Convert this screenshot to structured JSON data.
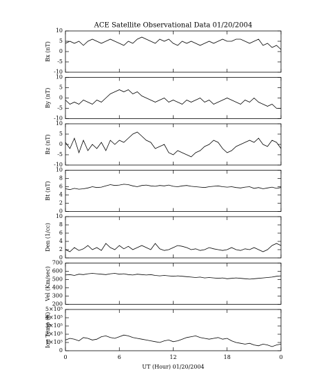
{
  "chart_data": [
    {
      "type": "line",
      "title": "ACE Satellite Observational Data   01/20/2004",
      "ylabel": "Bx (nT)",
      "x": [
        0,
        0.5,
        1,
        1.5,
        2,
        2.5,
        3,
        3.5,
        4,
        4.5,
        5,
        5.5,
        6,
        6.5,
        7,
        7.5,
        8,
        8.5,
        9,
        9.5,
        10,
        10.5,
        11,
        11.5,
        12,
        12.5,
        13,
        13.5,
        14,
        14.5,
        15,
        15.5,
        16,
        16.5,
        17,
        17.5,
        18,
        18.5,
        19,
        19.5,
        20,
        20.5,
        21,
        21.5,
        22,
        22.5,
        23,
        23.5,
        24
      ],
      "series": [
        {
          "name": "Bx",
          "color": "#000000",
          "values": [
            4,
            5,
            4,
            5,
            3,
            5,
            6,
            5,
            4,
            5,
            6,
            5,
            4,
            3,
            5,
            4,
            6,
            7,
            6,
            5,
            4,
            6,
            5,
            6,
            4,
            3,
            5,
            4,
            5,
            4,
            3,
            4,
            5,
            4,
            5,
            6,
            5,
            5,
            6,
            6,
            5,
            4,
            5,
            6,
            3,
            4,
            2,
            3,
            1
          ]
        }
      ],
      "xlim": [
        0,
        24
      ],
      "ylim": [
        -10,
        10
      ],
      "yticks": [
        10,
        5,
        0,
        -5,
        -10
      ]
    },
    {
      "type": "line",
      "ylabel": "By (nT)",
      "x": [
        0,
        0.5,
        1,
        1.5,
        2,
        2.5,
        3,
        3.5,
        4,
        4.5,
        5,
        5.5,
        6,
        6.5,
        7,
        7.5,
        8,
        8.5,
        9,
        9.5,
        10,
        10.5,
        11,
        11.5,
        12,
        12.5,
        13,
        13.5,
        14,
        14.5,
        15,
        15.5,
        16,
        16.5,
        17,
        17.5,
        18,
        18.5,
        19,
        19.5,
        20,
        20.5,
        21,
        21.5,
        22,
        22.5,
        23,
        23.5,
        24
      ],
      "series": [
        {
          "name": "By",
          "color": "#000000",
          "values": [
            -1,
            -3,
            -2,
            -3,
            -1,
            -2,
            -3,
            -1,
            -2,
            0,
            2,
            3,
            4,
            3,
            4,
            2,
            3,
            1,
            0,
            -1,
            -2,
            -1,
            0,
            -2,
            -1,
            -2,
            -3,
            -1,
            -2,
            -1,
            0,
            -2,
            -1,
            -3,
            -2,
            -1,
            0,
            -1,
            -2,
            -3,
            -1,
            -2,
            0,
            -2,
            -3,
            -4,
            -3,
            -5,
            -5
          ]
        }
      ],
      "xlim": [
        0,
        24
      ],
      "ylim": [
        -10,
        10
      ],
      "yticks": [
        10,
        5,
        0,
        -5,
        -10
      ]
    },
    {
      "type": "line",
      "ylabel": "Bz (nT)",
      "x": [
        0,
        0.5,
        1,
        1.5,
        2,
        2.5,
        3,
        3.5,
        4,
        4.5,
        5,
        5.5,
        6,
        6.5,
        7,
        7.5,
        8,
        8.5,
        9,
        9.5,
        10,
        10.5,
        11,
        11.5,
        12,
        12.5,
        13,
        13.5,
        14,
        14.5,
        15,
        15.5,
        16,
        16.5,
        17,
        17.5,
        18,
        18.5,
        19,
        19.5,
        20,
        20.5,
        21,
        21.5,
        22,
        22.5,
        23,
        23.5,
        24
      ],
      "series": [
        {
          "name": "Bz",
          "color": "#000000",
          "values": [
            1,
            -2,
            3,
            -4,
            2,
            -3,
            0,
            -2,
            1,
            -3,
            2,
            0,
            2,
            1,
            3,
            5,
            6,
            4,
            2,
            1,
            -2,
            -1,
            0,
            -4,
            -5,
            -3,
            -4,
            -5,
            -6,
            -4,
            -3,
            -1,
            0,
            2,
            1,
            -2,
            -4,
            -3,
            -1,
            0,
            1,
            2,
            1,
            3,
            0,
            -1,
            2,
            1,
            -2
          ]
        }
      ],
      "xlim": [
        0,
        24
      ],
      "ylim": [
        -10,
        10
      ],
      "yticks": [
        10,
        5,
        0,
        -5,
        -10
      ]
    },
    {
      "type": "line",
      "ylabel": "Bt (nT)",
      "x": [
        0,
        0.5,
        1,
        1.5,
        2,
        2.5,
        3,
        3.5,
        4,
        4.5,
        5,
        5.5,
        6,
        6.5,
        7,
        7.5,
        8,
        8.5,
        9,
        9.5,
        10,
        10.5,
        11,
        11.5,
        12,
        12.5,
        13,
        13.5,
        14,
        14.5,
        15,
        15.5,
        16,
        16.5,
        17,
        17.5,
        18,
        18.5,
        19,
        19.5,
        20,
        20.5,
        21,
        21.5,
        22,
        22.5,
        23,
        23.5,
        24
      ],
      "series": [
        {
          "name": "Bt",
          "color": "#000000",
          "values": [
            5.5,
            5.3,
            5.6,
            5.4,
            5.5,
            5.7,
            6,
            5.8,
            5.9,
            6.2,
            6.5,
            6.3,
            6.4,
            6.6,
            6.5,
            6.2,
            6,
            6.3,
            6.4,
            6.2,
            6.1,
            6.3,
            6.2,
            6.4,
            6.1,
            6,
            6.2,
            6.3,
            6.1,
            6,
            5.9,
            5.8,
            6,
            6.1,
            6.2,
            6,
            5.9,
            6,
            5.8,
            5.7,
            5.9,
            6,
            5.6,
            5.8,
            5.5,
            5.7,
            5.9,
            5.6,
            5.8
          ]
        }
      ],
      "xlim": [
        0,
        24
      ],
      "ylim": [
        0,
        10
      ],
      "yticks": [
        10,
        8,
        6,
        4,
        2,
        0
      ]
    },
    {
      "type": "line",
      "ylabel": "Den (1/cc)",
      "x": [
        0,
        0.5,
        1,
        1.5,
        2,
        2.5,
        3,
        3.5,
        4,
        4.5,
        5,
        5.5,
        6,
        6.5,
        7,
        7.5,
        8,
        8.5,
        9,
        9.5,
        10,
        10.5,
        11,
        11.5,
        12,
        12.5,
        13,
        13.5,
        14,
        14.5,
        15,
        15.5,
        16,
        16.5,
        17,
        17.5,
        18,
        18.5,
        19,
        19.5,
        20,
        20.5,
        21,
        21.5,
        22,
        22.5,
        23,
        23.5,
        24
      ],
      "series": [
        {
          "name": "Den",
          "color": "#000000",
          "values": [
            2,
            1.5,
            2.5,
            1.8,
            2.2,
            3,
            2,
            2.5,
            1.8,
            3.5,
            2.5,
            2,
            3,
            2.2,
            2.8,
            2,
            2.5,
            3,
            2.5,
            2,
            3.5,
            2.2,
            1.8,
            2,
            2.5,
            3,
            2.8,
            2.5,
            2,
            2.2,
            1.8,
            2,
            2.5,
            2.2,
            2,
            1.8,
            2,
            2.5,
            2,
            1.8,
            2.2,
            2,
            2.5,
            2,
            1.5,
            2,
            3,
            3.5,
            3
          ]
        }
      ],
      "xlim": [
        0,
        24
      ],
      "ylim": [
        0,
        10
      ],
      "yticks": [
        10,
        8,
        6,
        4,
        2,
        0
      ]
    },
    {
      "type": "line",
      "ylabel": "Vel (Km/sec)",
      "x": [
        0,
        0.5,
        1,
        1.5,
        2,
        2.5,
        3,
        3.5,
        4,
        4.5,
        5,
        5.5,
        6,
        6.5,
        7,
        7.5,
        8,
        8.5,
        9,
        9.5,
        10,
        10.5,
        11,
        11.5,
        12,
        12.5,
        13,
        13.5,
        14,
        14.5,
        15,
        15.5,
        16,
        16.5,
        17,
        17.5,
        18,
        18.5,
        19,
        19.5,
        20,
        20.5,
        21,
        21.5,
        22,
        22.5,
        23,
        23.5,
        24
      ],
      "series": [
        {
          "name": "Vel",
          "color": "#000000",
          "values": [
            555,
            560,
            550,
            565,
            560,
            570,
            575,
            570,
            565,
            560,
            570,
            575,
            565,
            570,
            560,
            555,
            565,
            560,
            555,
            560,
            550,
            545,
            550,
            545,
            540,
            545,
            540,
            535,
            530,
            525,
            530,
            520,
            525,
            520,
            515,
            520,
            510,
            515,
            520,
            515,
            510,
            505,
            510,
            515,
            520,
            525,
            530,
            540,
            545
          ]
        }
      ],
      "xlim": [
        0,
        24
      ],
      "ylim": [
        200,
        700
      ],
      "yticks": [
        700,
        600,
        500,
        400,
        300,
        200
      ]
    },
    {
      "type": "line",
      "ylabel": "Ion Temp (K)",
      "xlabel": "UT (Hour)   01/20/2004",
      "x": [
        0,
        0.5,
        1,
        1.5,
        2,
        2.5,
        3,
        3.5,
        4,
        4.5,
        5,
        5.5,
        6,
        6.5,
        7,
        7.5,
        8,
        8.5,
        9,
        9.5,
        10,
        10.5,
        11,
        11.5,
        12,
        12.5,
        13,
        13.5,
        14,
        14.5,
        15,
        15.5,
        16,
        16.5,
        17,
        17.5,
        18,
        18.5,
        19,
        19.5,
        20,
        20.5,
        21,
        21.5,
        22,
        22.5,
        23,
        23.5,
        24
      ],
      "series": [
        {
          "name": "Ion Temp",
          "color": "#000000",
          "values": [
            130000,
            150000,
            140000,
            120000,
            160000,
            150000,
            130000,
            140000,
            170000,
            180000,
            160000,
            150000,
            170000,
            190000,
            180000,
            160000,
            150000,
            140000,
            130000,
            120000,
            110000,
            100000,
            120000,
            130000,
            110000,
            120000,
            140000,
            160000,
            170000,
            180000,
            160000,
            150000,
            140000,
            150000,
            160000,
            140000,
            150000,
            120000,
            100000,
            90000,
            80000,
            90000,
            70000,
            60000,
            80000,
            70000,
            50000,
            70000,
            80000
          ]
        }
      ],
      "xlim": [
        0,
        24
      ],
      "ylim": [
        0,
        500000
      ],
      "yticks": [
        {
          "value": 500000,
          "label": "5×10⁵"
        },
        {
          "value": 400000,
          "label": "4×10⁵"
        },
        {
          "value": 300000,
          "label": "3×10⁵"
        },
        {
          "value": 200000,
          "label": "2×10⁵"
        },
        {
          "value": 100000,
          "label": "1×10⁵"
        },
        0
      ],
      "xticks": [
        0,
        6,
        12,
        18,
        {
          "value": 24,
          "label": "0"
        }
      ]
    }
  ]
}
